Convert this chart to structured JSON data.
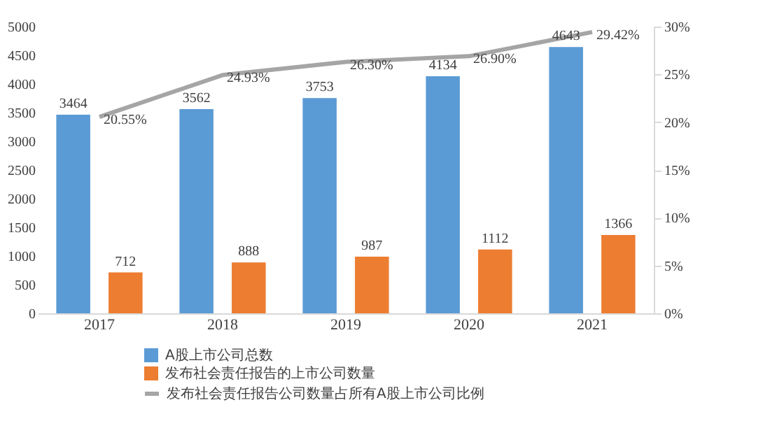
{
  "chart_data": {
    "type": "bar",
    "categories": [
      "2017",
      "2018",
      "2019",
      "2020",
      "2021"
    ],
    "series": [
      {
        "name": "A股上市公司总数",
        "color": "#5b9bd5",
        "values": [
          3464,
          3562,
          3753,
          4134,
          4643
        ],
        "value_labels": [
          "3464",
          "3562",
          "3753",
          "4134",
          "4643"
        ]
      },
      {
        "name": "发布社会责任报告的上市公司数量",
        "color": "#ed7d31",
        "values": [
          712,
          888,
          987,
          1112,
          1366
        ],
        "value_labels": [
          "712",
          "888",
          "987",
          "1112",
          "1366"
        ]
      },
      {
        "name": "发布社会责任报告公司数量占所有A股上市公司比例",
        "color": "#a5a5a5",
        "type": "line",
        "axis": "y2",
        "marker": "none",
        "values": [
          20.55,
          24.93,
          26.3,
          26.9,
          29.42
        ],
        "value_labels": [
          "20.55%",
          "24.93%",
          "26.30%",
          "26.90%",
          "29.42%"
        ]
      }
    ],
    "ylim": [
      0,
      5000
    ],
    "yticks": [
      0,
      500,
      1000,
      1500,
      2000,
      2500,
      3000,
      3500,
      4000,
      4500,
      5000
    ],
    "y2lim": [
      0,
      30
    ],
    "y2ticks": [
      {
        "value": 0,
        "label": "0%"
      },
      {
        "value": 5,
        "label": "5%"
      },
      {
        "value": 10,
        "label": "10%"
      },
      {
        "value": 15,
        "label": "15%"
      },
      {
        "value": 20,
        "label": "20%"
      },
      {
        "value": 25,
        "label": "25%"
      },
      {
        "value": 30,
        "label": "30%"
      }
    ],
    "grid": false,
    "legend": "bottom"
  }
}
